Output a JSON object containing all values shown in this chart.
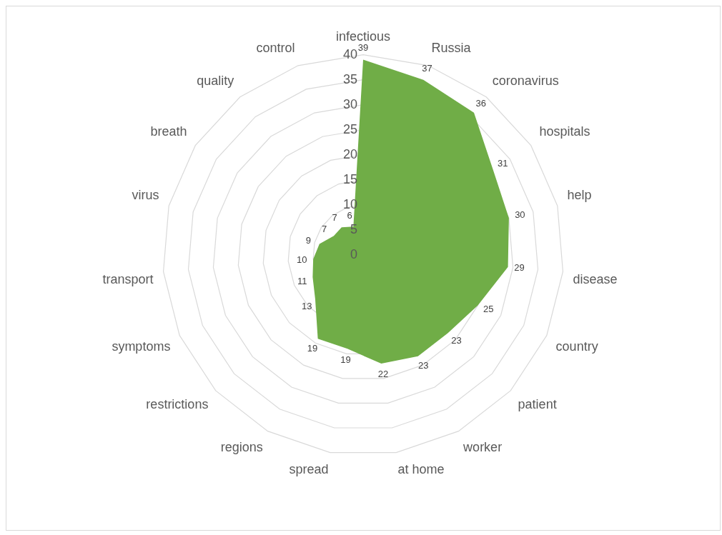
{
  "chart_data": {
    "type": "radar",
    "categories": [
      "infectious",
      "Russia",
      "coronavirus",
      "hospitals",
      "help",
      "disease",
      "country",
      "patient",
      "worker",
      "at home",
      "spread",
      "regions",
      "restrictions",
      "symptoms",
      "transport",
      "virus",
      "breath",
      "quality",
      "control"
    ],
    "series": [
      {
        "color": "#70ad47",
        "values": [
          39,
          37,
          36,
          31,
          30,
          29,
          25,
          23,
          23,
          22,
          19,
          19,
          13,
          11,
          10,
          9,
          7,
          7,
          6
        ]
      }
    ],
    "ylim": [
      0,
      40
    ],
    "yticks": [
      0,
      5,
      10,
      15,
      20,
      25,
      30,
      35,
      40
    ],
    "grid": true,
    "data_labels": true
  }
}
